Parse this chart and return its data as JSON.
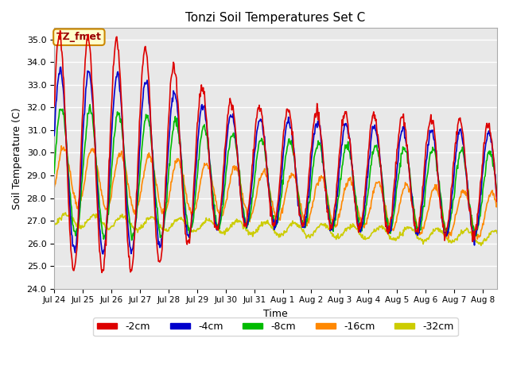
{
  "title": "Tonzi Soil Temperatures Set C",
  "xlabel": "Time",
  "ylabel": "Soil Temperature (C)",
  "ylim": [
    24.0,
    35.5
  ],
  "yticks": [
    24.0,
    25.0,
    26.0,
    27.0,
    28.0,
    29.0,
    30.0,
    31.0,
    32.0,
    33.0,
    34.0,
    35.0
  ],
  "xtick_labels": [
    "Jul 24",
    "Jul 25",
    "Jul 26",
    "Jul 27",
    "Jul 28",
    "Jul 29",
    "Jul 30",
    "Jul 31",
    "Aug 1",
    "Aug 2",
    "Aug 3",
    "Aug 4",
    "Aug 5",
    "Aug 6",
    "Aug 7",
    "Aug 8"
  ],
  "series": {
    "-2cm": {
      "color": "#dd0000",
      "lw": 1.2
    },
    "-4cm": {
      "color": "#0000cc",
      "lw": 1.2
    },
    "-8cm": {
      "color": "#00bb00",
      "lw": 1.2
    },
    "-16cm": {
      "color": "#ff8800",
      "lw": 1.2
    },
    "-32cm": {
      "color": "#cccc00",
      "lw": 1.2
    }
  },
  "legend_labels": [
    "-2cm",
    "-4cm",
    "-8cm",
    "-16cm",
    "-32cm"
  ],
  "legend_colors": [
    "#dd0000",
    "#0000cc",
    "#00bb00",
    "#ff8800",
    "#cccc00"
  ],
  "bg_color": "#e8e8e8",
  "annotation_text": "TZ_fmet",
  "annotation_bg": "#ffffcc",
  "annotation_border": "#cc8800"
}
